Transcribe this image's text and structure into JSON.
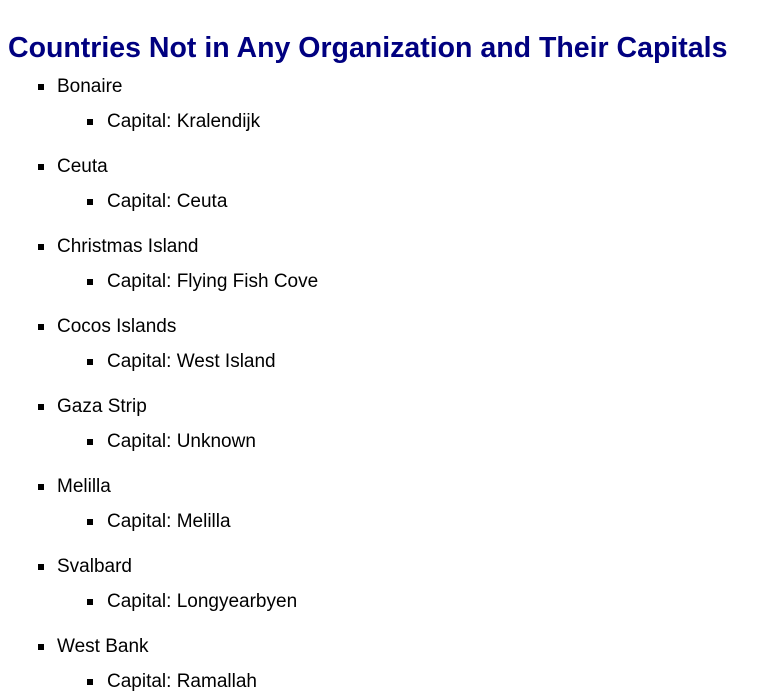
{
  "page": {
    "title": "Countries Not in Any Organization and Their Capitals",
    "capital_prefix": "Capital: "
  },
  "countries": [
    {
      "name": "Bonaire",
      "capital": "Kralendijk"
    },
    {
      "name": "Ceuta",
      "capital": "Ceuta"
    },
    {
      "name": "Christmas Island",
      "capital": "Flying Fish Cove"
    },
    {
      "name": "Cocos Islands",
      "capital": "West Island"
    },
    {
      "name": "Gaza Strip",
      "capital": "Unknown"
    },
    {
      "name": "Melilla",
      "capital": "Melilla"
    },
    {
      "name": "Svalbard",
      "capital": "Longyearbyen"
    },
    {
      "name": "West Bank",
      "capital": "Ramallah"
    }
  ]
}
